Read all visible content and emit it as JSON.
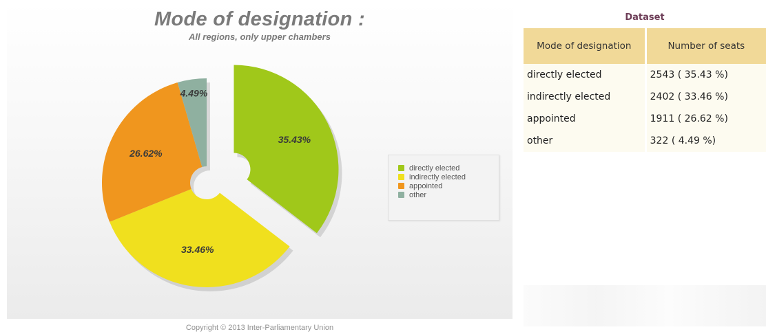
{
  "chart_data": {
    "type": "pie",
    "title": "Mode of designation :",
    "subtitle": "All regions, only upper chambers",
    "slices": [
      {
        "label": "directly elected",
        "value": 35.43,
        "value_label": "35.43%",
        "color": "#a0c81a"
      },
      {
        "label": "indirectly elected",
        "value": 33.46,
        "value_label": "33.46%",
        "color": "#f0e01e"
      },
      {
        "label": "appointed",
        "value": 26.62,
        "value_label": "26.62%",
        "color": "#f0961e"
      },
      {
        "label": "other",
        "value": 4.49,
        "value_label": "4.49%",
        "color": "#8fb0a0"
      }
    ],
    "legend_position": "right"
  },
  "legend": {
    "items": [
      {
        "label": "directly elected",
        "color": "#a0c81a"
      },
      {
        "label": "indirectly elected",
        "color": "#f0e01e"
      },
      {
        "label": "appointed",
        "color": "#f0961e"
      },
      {
        "label": "other",
        "color": "#8fb0a0"
      }
    ]
  },
  "copyright": "Copyright © 2013 Inter-Parliamentary Union",
  "dataset": {
    "caption": "Dataset",
    "headers": [
      "Mode of designation",
      "Number of seats"
    ],
    "rows": [
      {
        "mode": "directly elected",
        "seats": "2543 ( 35.43 %)"
      },
      {
        "mode": "indirectly elected",
        "seats": "2402 ( 33.46 %)"
      },
      {
        "mode": "appointed",
        "seats": "1911 ( 26.62 %)"
      },
      {
        "mode": "other",
        "seats": "322 ( 4.49 %)"
      }
    ]
  }
}
